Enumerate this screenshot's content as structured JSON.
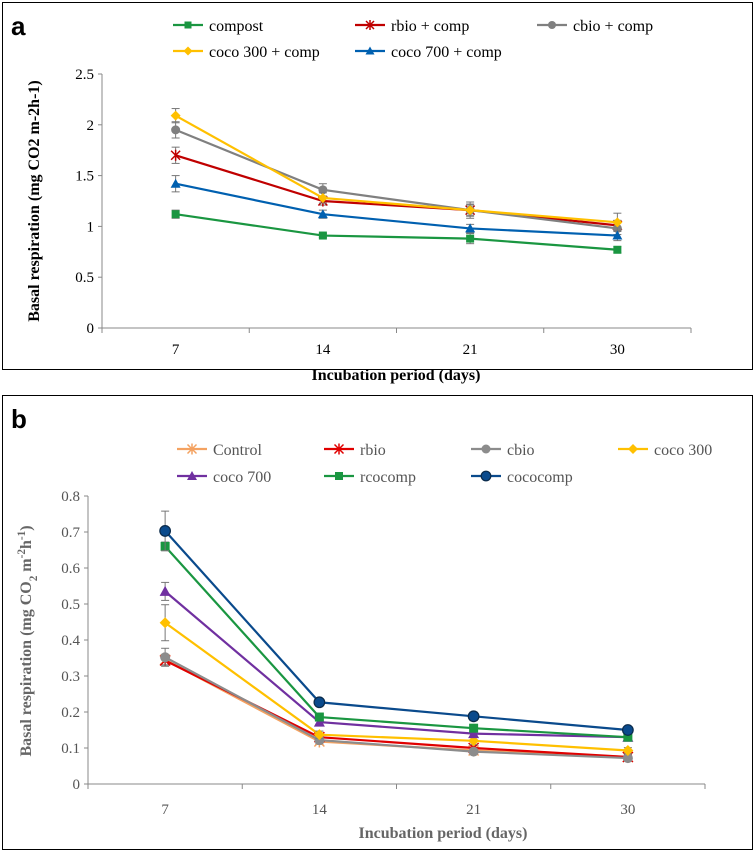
{
  "chart_data": [
    {
      "panel": "a",
      "type": "line",
      "title": "",
      "xlabel": "Incubation period (days)",
      "ylabel": "Basal respiration (mg CO2 m-2h-1)",
      "categories": [
        "7",
        "14",
        "21",
        "30"
      ],
      "ylim": [
        0,
        2.5
      ],
      "yticks": [
        "0",
        "0.5",
        "1",
        "1.5",
        "2",
        "2.5"
      ],
      "legend_position": "top",
      "series": [
        {
          "name": "compost",
          "color": "#1a9641",
          "marker": "square",
          "values": [
            1.12,
            0.91,
            0.88,
            0.77
          ],
          "errors": [
            0.04,
            0.02,
            0.05,
            0.03
          ]
        },
        {
          "name": "rbio + comp",
          "color": "#c00000",
          "marker": "star",
          "values": [
            1.7,
            1.25,
            1.16,
            1.01
          ],
          "errors": [
            0.08,
            0.04,
            0.06,
            0.05
          ]
        },
        {
          "name": "cbio + comp",
          "color": "#808080",
          "marker": "circle",
          "values": [
            1.95,
            1.36,
            1.16,
            0.98
          ],
          "errors": [
            0.08,
            0.06,
            0.08,
            0.06
          ]
        },
        {
          "name": "coco 300 + comp",
          "color": "#ffc000",
          "marker": "diamond",
          "values": [
            2.09,
            1.28,
            1.16,
            1.04
          ],
          "errors": [
            0.07,
            0.05,
            0.05,
            0.09
          ]
        },
        {
          "name": "coco 700 + comp",
          "color": "#0060b0",
          "marker": "triangle",
          "values": [
            1.42,
            1.12,
            0.98,
            0.91
          ],
          "errors": [
            0.08,
            0.04,
            0.04,
            0.05
          ]
        }
      ]
    },
    {
      "panel": "b",
      "type": "line",
      "title": "",
      "xlabel": "Incubation period (days)",
      "ylabel": "Basal respiration (mg CO2 m-2h-1)",
      "ylabel_parts": {
        "pre": "Basal respiration (mg CO",
        "sub": "2",
        "mid": " m",
        "sup1": "-2",
        "mid2": "h",
        "sup2": "-1",
        "post": ")"
      },
      "categories": [
        "7",
        "14",
        "21",
        "30"
      ],
      "ylim": [
        0,
        0.8
      ],
      "yticks": [
        "0",
        "0.1",
        "0.2",
        "0.3",
        "0.4",
        "0.5",
        "0.6",
        "0.7",
        "0.8"
      ],
      "legend_position": "top",
      "series": [
        {
          "name": "Control",
          "color": "#f4a261",
          "marker": "star",
          "values": [
            0.345,
            0.118,
            0.093,
            0.075
          ],
          "errors": [
            0.015,
            0.008,
            0.008,
            0.006
          ]
        },
        {
          "name": "rbio",
          "color": "#e00000",
          "marker": "star",
          "values": [
            0.343,
            0.13,
            0.1,
            0.075
          ],
          "errors": [
            0.012,
            0.008,
            0.008,
            0.006
          ]
        },
        {
          "name": "cbio",
          "color": "#8c8c8c",
          "marker": "circle",
          "values": [
            0.352,
            0.122,
            0.09,
            0.072
          ],
          "errors": [
            0.025,
            0.01,
            0.008,
            0.006
          ]
        },
        {
          "name": "coco 300",
          "color": "#ffc000",
          "marker": "diamond",
          "values": [
            0.448,
            0.137,
            0.12,
            0.093
          ],
          "errors": [
            0.05,
            0.01,
            0.01,
            0.008
          ]
        },
        {
          "name": "coco 700",
          "color": "#7030a0",
          "marker": "triangle",
          "values": [
            0.535,
            0.172,
            0.14,
            0.13
          ],
          "errors": [
            0.025,
            0.01,
            0.01,
            0.008
          ]
        },
        {
          "name": "rcocomp",
          "color": "#1a9641",
          "marker": "square",
          "values": [
            0.66,
            0.186,
            0.155,
            0.13
          ],
          "errors": [
            0.012,
            0.01,
            0.01,
            0.008
          ]
        },
        {
          "name": "cococomp",
          "color": "#0a4a8c",
          "marker": "circle-dark",
          "values": [
            0.703,
            0.227,
            0.188,
            0.15
          ],
          "errors": [
            0.055,
            0.01,
            0.012,
            0.008
          ]
        }
      ]
    }
  ]
}
